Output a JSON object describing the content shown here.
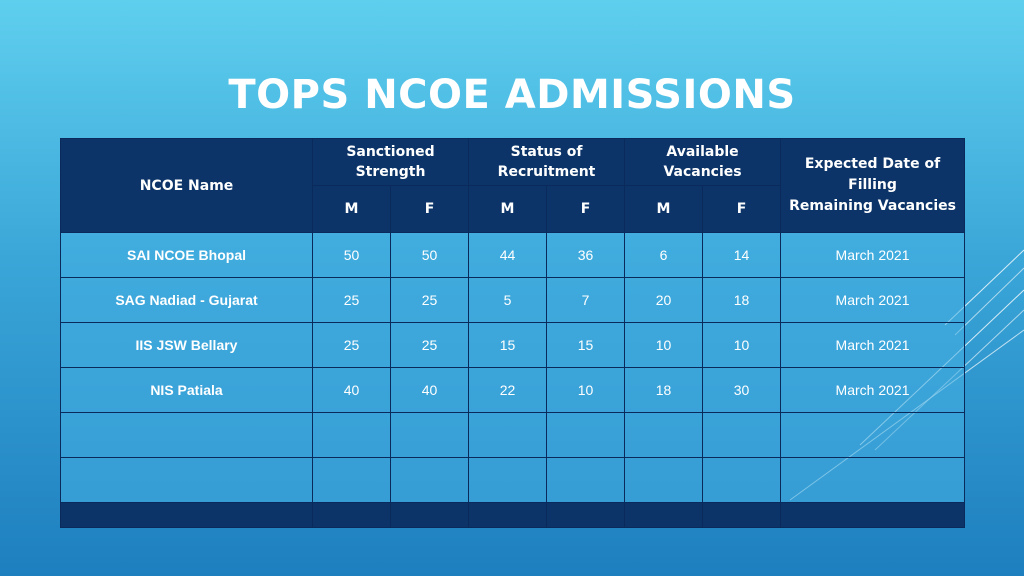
{
  "title": "TOPS NCOE ADMISSIONS",
  "table": {
    "header_name": "NCOE Name",
    "groups": [
      {
        "line1": "Sanctioned",
        "line2": "Strength"
      },
      {
        "line1": "Status of",
        "line2": "Recruitment"
      },
      {
        "line1": "Available",
        "line2": "Vacancies"
      }
    ],
    "expected_line1": "Expected Date of Filling",
    "expected_line2": "Remaining Vacancies",
    "sub": [
      "M",
      "F",
      "M",
      "F",
      "M",
      "F"
    ],
    "rows": [
      {
        "name": "SAI NCOE Bhopal",
        "values": [
          "50",
          "50",
          "44",
          "36",
          "6",
          "14"
        ],
        "date": "March 2021"
      },
      {
        "name": "SAG Nadiad - Gujarat",
        "values": [
          "25",
          "25",
          "5",
          "7",
          "20",
          "18"
        ],
        "date": "March 2021"
      },
      {
        "name": "IIS JSW Bellary",
        "values": [
          "25",
          "25",
          "15",
          "15",
          "10",
          "10"
        ],
        "date": "March 2021"
      },
      {
        "name": "NIS Patiala",
        "values": [
          "40",
          "40",
          "22",
          "10",
          "18",
          "30"
        ],
        "date": "March 2021"
      }
    ]
  },
  "colors": {
    "header": "#0c3468",
    "row": "#46afe1"
  }
}
